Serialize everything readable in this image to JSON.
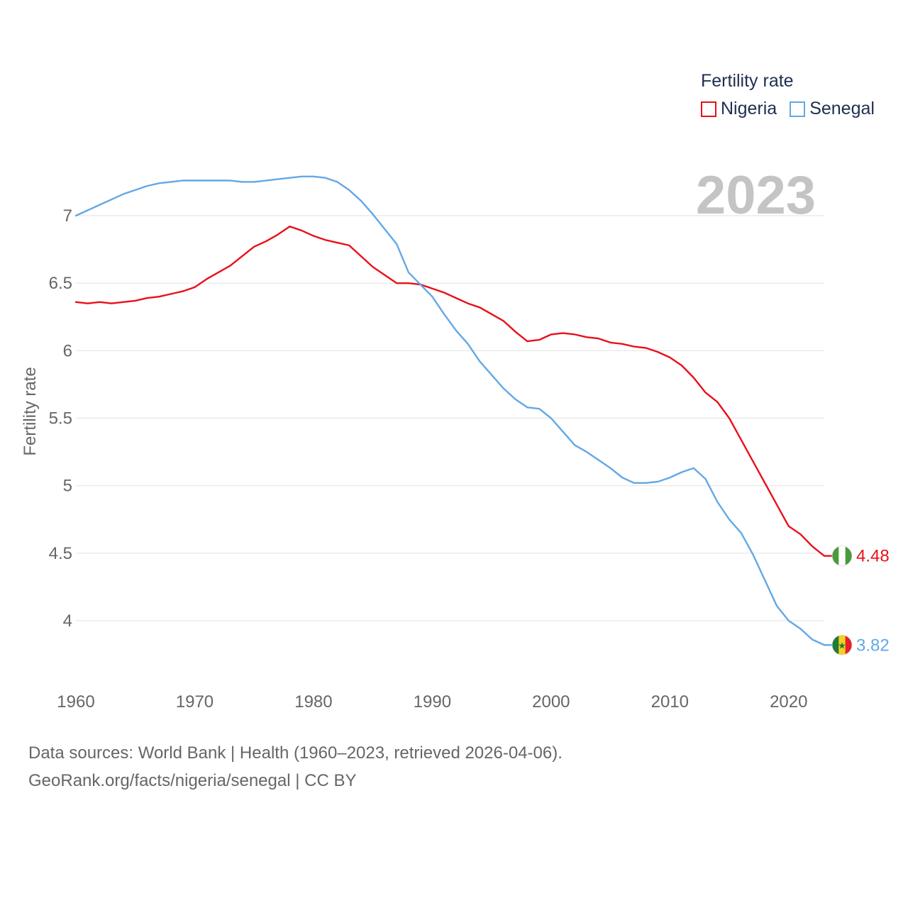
{
  "legend": {
    "title": "Fertility rate",
    "items": [
      {
        "label": "Nigeria",
        "color": "#e8101a"
      },
      {
        "label": "Senegal",
        "color": "#63a8e6"
      }
    ]
  },
  "year_label": "2023",
  "footer": {
    "line1": "Data sources: World Bank | Health (1960–2023, retrieved 2026-04-06).",
    "line2": "GeoRank.org/facts/nigeria/senegal | CC BY"
  },
  "chart_data": {
    "type": "line",
    "title": "",
    "xlabel": "",
    "ylabel": "Fertility rate",
    "xlim": [
      1960,
      2023
    ],
    "ylim": [
      3.6,
      7.3
    ],
    "x_ticks": [
      1960,
      1970,
      1980,
      1990,
      2000,
      2010,
      2020
    ],
    "x_tick_labels": [
      "1960",
      "1970",
      "1980",
      "1990",
      "2000",
      "2010",
      "2020"
    ],
    "y_ticks": [
      4,
      4.5,
      5,
      5.5,
      6,
      6.5,
      7
    ],
    "y_tick_labels": [
      "4",
      "4.5",
      "5",
      "5.5",
      "6",
      "6.5",
      "7"
    ],
    "grid": true,
    "x": [
      1960,
      1961,
      1962,
      1963,
      1964,
      1965,
      1966,
      1967,
      1968,
      1969,
      1970,
      1971,
      1972,
      1973,
      1974,
      1975,
      1976,
      1977,
      1978,
      1979,
      1980,
      1981,
      1982,
      1983,
      1984,
      1985,
      1986,
      1987,
      1988,
      1989,
      1990,
      1991,
      1992,
      1993,
      1994,
      1995,
      1996,
      1997,
      1998,
      1999,
      2000,
      2001,
      2002,
      2003,
      2004,
      2005,
      2006,
      2007,
      2008,
      2009,
      2010,
      2011,
      2012,
      2013,
      2014,
      2015,
      2016,
      2017,
      2018,
      2019,
      2020,
      2021,
      2022,
      2023
    ],
    "series": [
      {
        "name": "Nigeria",
        "color": "#e8101a",
        "end_label": "4.48",
        "flag": "nigeria",
        "values": [
          6.36,
          6.35,
          6.36,
          6.35,
          6.36,
          6.37,
          6.39,
          6.4,
          6.42,
          6.44,
          6.47,
          6.53,
          6.58,
          6.63,
          6.7,
          6.77,
          6.81,
          6.86,
          6.92,
          6.89,
          6.85,
          6.82,
          6.8,
          6.78,
          6.7,
          6.62,
          6.56,
          6.5,
          6.5,
          6.49,
          6.46,
          6.43,
          6.39,
          6.35,
          6.32,
          6.27,
          6.22,
          6.14,
          6.07,
          6.08,
          6.12,
          6.13,
          6.12,
          6.1,
          6.09,
          6.06,
          6.05,
          6.03,
          6.02,
          5.99,
          5.95,
          5.89,
          5.8,
          5.69,
          5.62,
          5.5,
          5.34,
          5.18,
          5.02,
          4.86,
          4.7,
          4.64,
          4.55,
          4.48
        ]
      },
      {
        "name": "Senegal",
        "color": "#63a8e6",
        "end_label": "3.82",
        "flag": "senegal",
        "values": [
          7.0,
          7.04,
          7.08,
          7.12,
          7.16,
          7.19,
          7.22,
          7.24,
          7.25,
          7.26,
          7.26,
          7.26,
          7.26,
          7.26,
          7.25,
          7.25,
          7.26,
          7.27,
          7.28,
          7.29,
          7.29,
          7.28,
          7.25,
          7.19,
          7.11,
          7.01,
          6.9,
          6.79,
          6.58,
          6.49,
          6.4,
          6.27,
          6.15,
          6.05,
          5.92,
          5.82,
          5.72,
          5.64,
          5.58,
          5.57,
          5.5,
          5.4,
          5.3,
          5.25,
          5.19,
          5.13,
          5.06,
          5.02,
          5.02,
          5.03,
          5.06,
          5.1,
          5.13,
          5.05,
          4.88,
          4.75,
          4.65,
          4.49,
          4.3,
          4.11,
          4.0,
          3.94,
          3.86,
          3.82
        ]
      }
    ]
  }
}
